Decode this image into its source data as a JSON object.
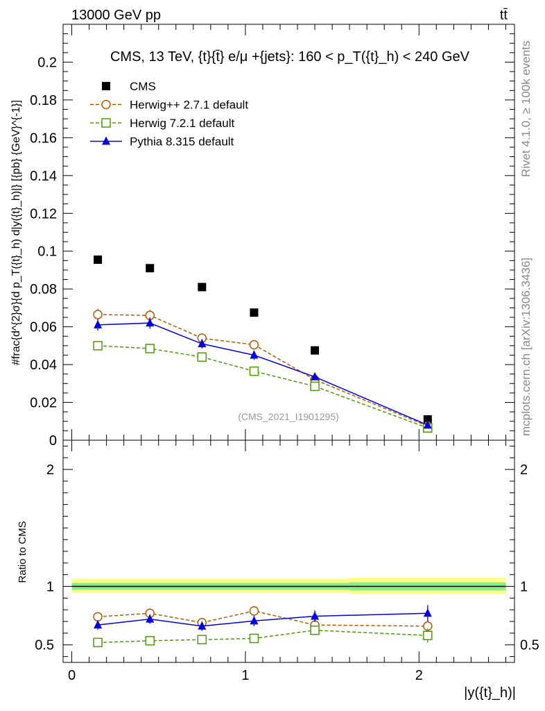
{
  "header": {
    "energy_label": "13000 GeV pp",
    "process_label": "tt̄"
  },
  "side_labels": {
    "rivet": "Rivet 4.1.0, ≥ 100k events",
    "mcplots": "mcplots.cern.ch [arXiv:1306.3436]"
  },
  "chart_data": {
    "type": "scatter",
    "title": "CMS, 13 TeV, {t}{t̄} e/μ +{jets}: 160 <  p_T({t}_h) < 240 GeV",
    "watermark": "(CMS_2021_I1901295)",
    "ylabel": "#frac{d^{2}σ}{d p_T({t}_h) d|y({t}_h)|} [{pb} {GeV}^{-1}]",
    "xlabel": "|y({t}_h)|",
    "ratio_ylabel": "Ratio to CMS",
    "xlim": [
      -0.05,
      2.55
    ],
    "ylim": [
      0,
      0.22
    ],
    "ratio_ylim": [
      0.35,
      2.25
    ],
    "x": [
      0.15,
      0.45,
      0.75,
      1.05,
      1.4,
      2.05
    ],
    "x_ticks": [
      0,
      1,
      2
    ],
    "y_ticks": [
      0.02,
      0.04,
      0.06,
      0.08,
      0.1,
      0.12,
      0.14,
      0.16,
      0.18,
      0.2
    ],
    "y_tick_labels": [
      "0.02",
      "0.04",
      "0.06",
      "0.08",
      "0.1",
      "0.12",
      "0.14",
      "0.16",
      "0.18",
      "0.2"
    ],
    "y_zero_label": "0",
    "ratio_ticks": [
      0.5,
      1,
      2
    ],
    "ratio_tick_labels": [
      "0.5",
      "1",
      "2"
    ],
    "series": [
      {
        "name": "CMS",
        "marker": "square-filled",
        "color": "#000000",
        "values": [
          0.0955,
          0.091,
          0.081,
          0.0675,
          0.0475,
          0.011
        ],
        "errors": [
          0.0015,
          0.0015,
          0.0015,
          0.0012,
          0.001,
          0.0005
        ]
      },
      {
        "name": "Herwig++ 2.7.1 default",
        "marker": "circle-open",
        "color": "#b35900",
        "dash": "5,3",
        "values": [
          0.0665,
          0.066,
          0.054,
          0.0505,
          0.032,
          0.0075
        ],
        "errors": [
          0.003,
          0.003,
          0.0025,
          0.0025,
          0.0015,
          0.0006
        ],
        "ratio": [
          0.74,
          0.77,
          0.69,
          0.79,
          0.67,
          0.66
        ],
        "ratio_errors": [
          0.035,
          0.035,
          0.035,
          0.04,
          0.04,
          0.05
        ]
      },
      {
        "name": "Herwig 7.2.1 default",
        "marker": "square-open",
        "color": "#4e9a06",
        "dash": "5,3",
        "values": [
          0.05,
          0.0485,
          0.044,
          0.0365,
          0.0285,
          0.0065
        ],
        "errors": [
          0.0025,
          0.0025,
          0.002,
          0.002,
          0.0015,
          0.0006
        ],
        "ratio": [
          0.52,
          0.535,
          0.545,
          0.555,
          0.625,
          0.58
        ],
        "ratio_errors": [
          0.035,
          0.035,
          0.035,
          0.04,
          0.04,
          0.06
        ]
      },
      {
        "name": "Pythia 8.315 default",
        "marker": "triangle-filled",
        "color": "#0000dd",
        "dash": "",
        "values": [
          0.061,
          0.062,
          0.051,
          0.045,
          0.0335,
          0.008
        ],
        "errors": [
          0.003,
          0.003,
          0.0025,
          0.0025,
          0.0018,
          0.0008
        ],
        "ratio": [
          0.67,
          0.72,
          0.66,
          0.705,
          0.745,
          0.77
        ],
        "ratio_errors": [
          0.04,
          0.04,
          0.04,
          0.045,
          0.05,
          0.07
        ]
      }
    ],
    "ratio_bands": [
      {
        "x_range": [
          0.0,
          1.6
        ],
        "inner": [
          0.97,
          1.03
        ],
        "outer": [
          0.945,
          1.065
        ]
      },
      {
        "x_range": [
          1.6,
          2.5
        ],
        "inner": [
          0.965,
          1.035
        ],
        "outer": [
          0.935,
          1.075
        ]
      }
    ],
    "band_colors": {
      "outer": "#ffff88",
      "inner": "#88ee88"
    }
  }
}
